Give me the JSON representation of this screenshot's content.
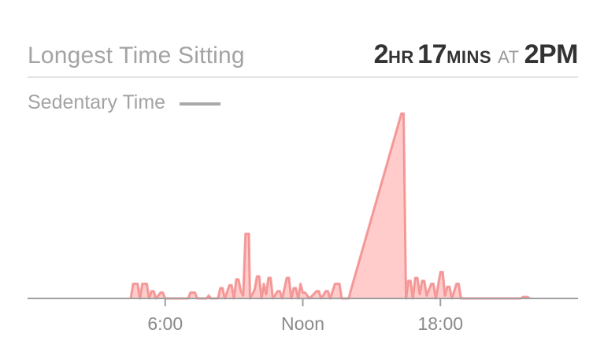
{
  "header": {
    "title": "Longest Time Sitting",
    "hours": "2",
    "hours_unit": "HR",
    "minutes": "17",
    "minutes_unit": "MINS",
    "at": "AT",
    "time": "2PM"
  },
  "legend": {
    "label": "Sedentary Time"
  },
  "colors": {
    "fill": "#ffc2c2",
    "line": "#f07878",
    "baseline": "#9f9f9f",
    "legend": "#a9a9a9"
  },
  "chart_data": {
    "type": "area",
    "title": "",
    "xlabel": "",
    "ylabel": "",
    "x_unit": "hour of day",
    "xlim": [
      0,
      24
    ],
    "ylim": [
      0,
      140
    ],
    "xticks": [
      {
        "value": 6,
        "label": "6:00"
      },
      {
        "value": 12,
        "label": "Noon"
      },
      {
        "value": 18,
        "label": "18:00"
      }
    ],
    "series": [
      {
        "name": "Sedentary Time",
        "points": [
          [
            4.5,
            0
          ],
          [
            4.6,
            10
          ],
          [
            4.8,
            10
          ],
          [
            4.9,
            0
          ],
          [
            5.0,
            10
          ],
          [
            5.2,
            10
          ],
          [
            5.3,
            0
          ],
          [
            5.4,
            5
          ],
          [
            5.5,
            5
          ],
          [
            5.6,
            0
          ],
          [
            5.8,
            4
          ],
          [
            5.9,
            4
          ],
          [
            6.0,
            0
          ],
          [
            7.0,
            0
          ],
          [
            7.1,
            4
          ],
          [
            7.3,
            4
          ],
          [
            7.4,
            0
          ],
          [
            7.8,
            0
          ],
          [
            7.9,
            2
          ],
          [
            8.0,
            0
          ],
          [
            8.3,
            0
          ],
          [
            8.4,
            7
          ],
          [
            8.5,
            7
          ],
          [
            8.6,
            0
          ],
          [
            8.8,
            9
          ],
          [
            8.9,
            9
          ],
          [
            9.0,
            0
          ],
          [
            9.1,
            13
          ],
          [
            9.2,
            13
          ],
          [
            9.3,
            5
          ],
          [
            9.4,
            2
          ],
          [
            9.5,
            44
          ],
          [
            9.65,
            44
          ],
          [
            9.7,
            0
          ],
          [
            9.8,
            3
          ],
          [
            9.9,
            6
          ],
          [
            10.0,
            15
          ],
          [
            10.1,
            15
          ],
          [
            10.2,
            0
          ],
          [
            10.3,
            10
          ],
          [
            10.4,
            3
          ],
          [
            10.5,
            14
          ],
          [
            10.6,
            14
          ],
          [
            10.7,
            0
          ],
          [
            10.9,
            5
          ],
          [
            11.0,
            5
          ],
          [
            11.1,
            0
          ],
          [
            11.3,
            14
          ],
          [
            11.4,
            14
          ],
          [
            11.5,
            0
          ],
          [
            11.6,
            7
          ],
          [
            11.7,
            7
          ],
          [
            11.8,
            0
          ],
          [
            11.9,
            10
          ],
          [
            12.0,
            4
          ],
          [
            12.1,
            4
          ],
          [
            12.3,
            0
          ],
          [
            12.6,
            5
          ],
          [
            12.7,
            5
          ],
          [
            12.8,
            0
          ],
          [
            13.0,
            5
          ],
          [
            13.1,
            5
          ],
          [
            13.2,
            0
          ],
          [
            13.4,
            10
          ],
          [
            13.6,
            10
          ],
          [
            13.7,
            0
          ],
          [
            14.0,
            0
          ],
          [
            14.1,
            6
          ],
          [
            16.3,
            126
          ],
          [
            16.4,
            126
          ],
          [
            16.5,
            0
          ],
          [
            16.6,
            12
          ],
          [
            16.7,
            12
          ],
          [
            16.8,
            0
          ],
          [
            16.9,
            14
          ],
          [
            17.0,
            14
          ],
          [
            17.1,
            3
          ],
          [
            17.2,
            12
          ],
          [
            17.3,
            12
          ],
          [
            17.4,
            2
          ],
          [
            17.6,
            10
          ],
          [
            17.7,
            10
          ],
          [
            17.8,
            0
          ],
          [
            18.0,
            18
          ],
          [
            18.1,
            18
          ],
          [
            18.2,
            2
          ],
          [
            18.3,
            8
          ],
          [
            18.4,
            8
          ],
          [
            18.5,
            0
          ],
          [
            18.7,
            10
          ],
          [
            18.8,
            10
          ],
          [
            18.9,
            0
          ],
          [
            21.5,
            0
          ],
          [
            21.6,
            1
          ],
          [
            21.8,
            1
          ],
          [
            21.9,
            0
          ]
        ]
      }
    ],
    "grid": false,
    "legend_position": "top-left"
  }
}
